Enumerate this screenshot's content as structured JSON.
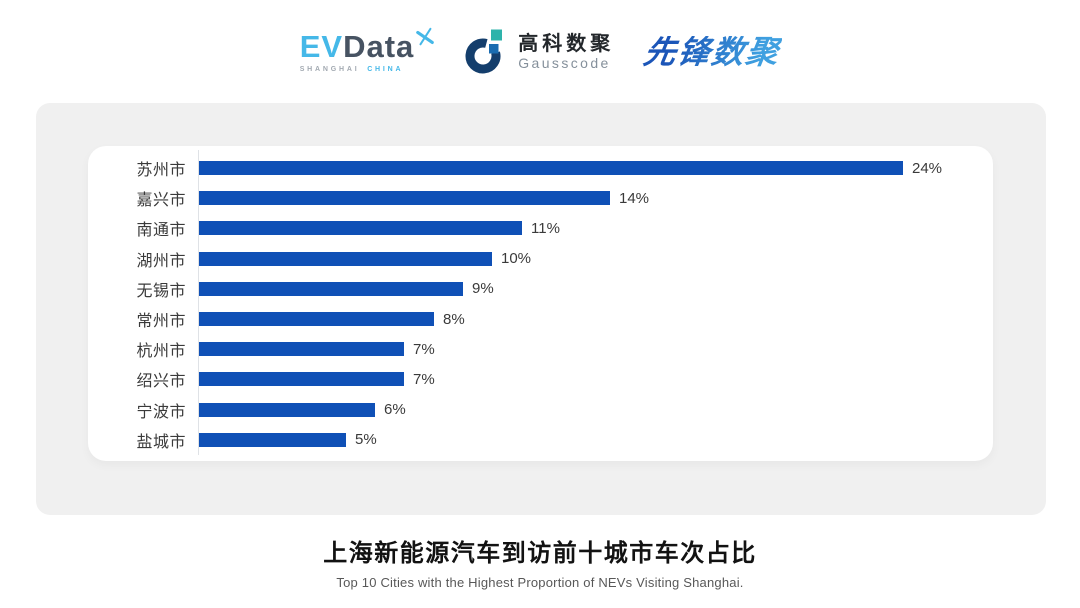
{
  "header": {
    "evdata": {
      "ev": "EV",
      "data": "Data",
      "sub_left": "SHANGHAI",
      "sub_right": "CHINA",
      "brand_blue": "#45b8e8",
      "brand_dark": "#475362"
    },
    "gausscode": {
      "cn": "高科数聚",
      "en": "Gausscode",
      "mark_navy": "#143e6c",
      "mark_teal": "#2eb3ab",
      "mark_blue": "#1a6cb0"
    },
    "xianfeng": {
      "text": "先锋数聚",
      "gradient_start": "#1b55b8",
      "gradient_end": "#3fa0e0"
    }
  },
  "chart_data": {
    "type": "bar",
    "orientation": "horizontal",
    "categories": [
      "苏州市",
      "嘉兴市",
      "南通市",
      "湖州市",
      "无锡市",
      "常州市",
      "杭州市",
      "绍兴市",
      "宁波市",
      "盐城市"
    ],
    "values": [
      24,
      14,
      11,
      10,
      9,
      8,
      7,
      7,
      6,
      5
    ],
    "value_labels": [
      "24%",
      "14%",
      "11%",
      "10%",
      "9%",
      "8%",
      "7%",
      "7%",
      "6%",
      "5%"
    ],
    "value_unit": "%",
    "bar_color": "#0f50b6",
    "grid": false,
    "legend": false,
    "title": "上海新能源汽车到访前十城市车次占比",
    "subtitle": "Top 10 Cities with the Highest Proportion of  NEVs Visiting Shanghai."
  }
}
